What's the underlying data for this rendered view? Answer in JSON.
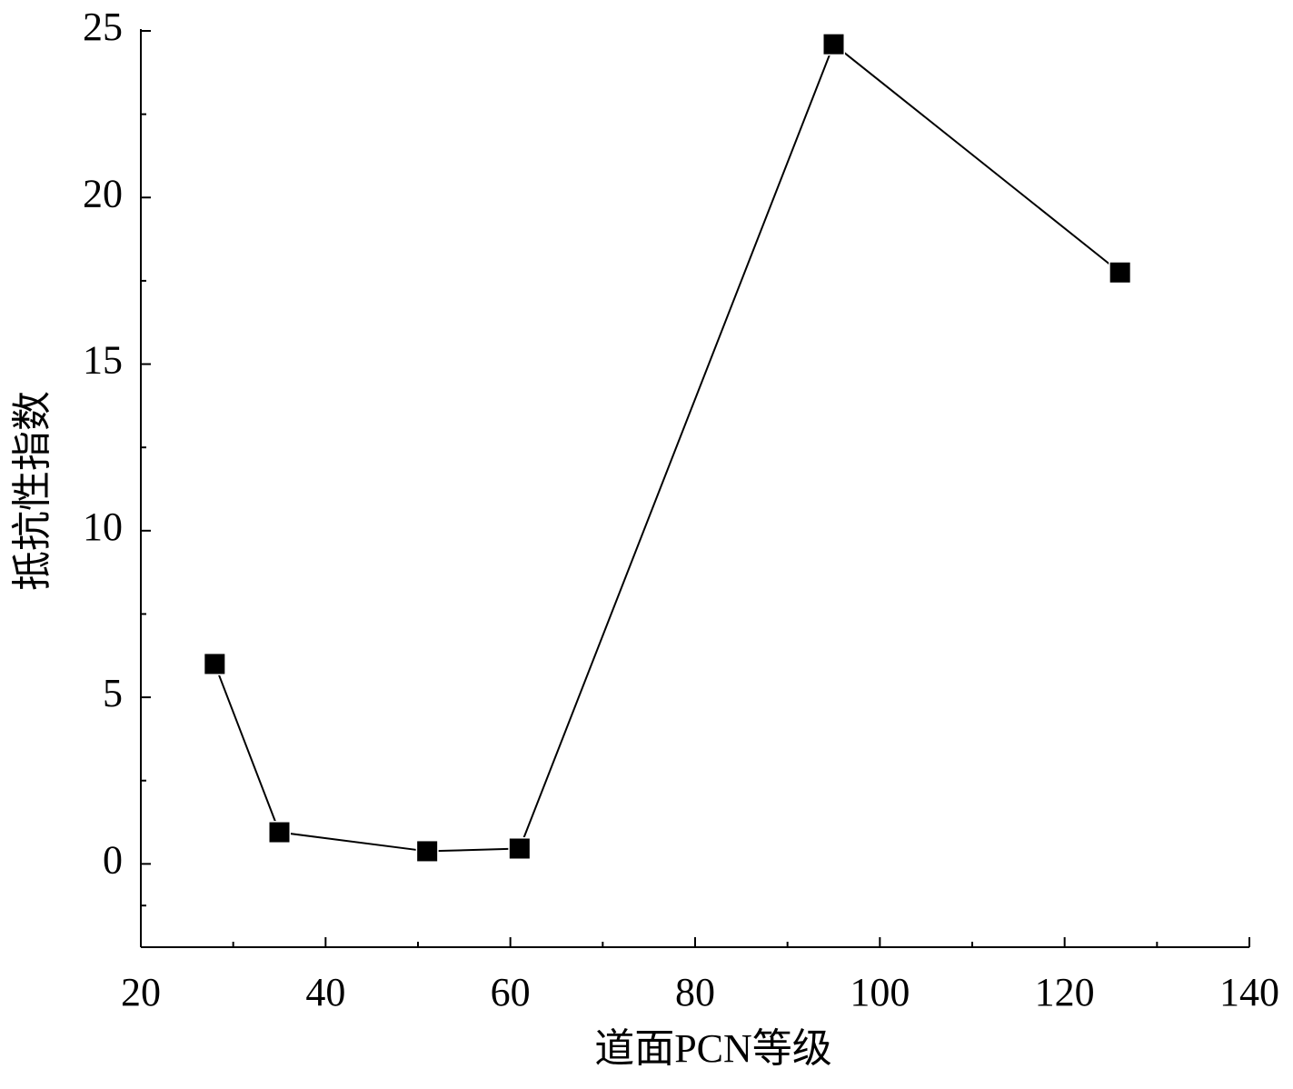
{
  "chart_data": {
    "type": "line",
    "x_label": "道面PCN等级",
    "y_label": "抵抗性指数",
    "x": [
      28,
      35,
      51,
      61,
      95,
      126
    ],
    "series": [
      {
        "color": "#000000",
        "values": [
          6.0,
          0.95,
          0.38,
          0.46,
          24.6,
          17.75
        ]
      }
    ],
    "xlim": [
      20,
      140
    ],
    "xticks": [
      20,
      40,
      60,
      80,
      100,
      120,
      140
    ],
    "ylim": [
      -2.5,
      25
    ],
    "yticks": [
      0,
      5,
      10,
      15,
      20,
      25
    ],
    "grid": false,
    "marker": "square"
  }
}
